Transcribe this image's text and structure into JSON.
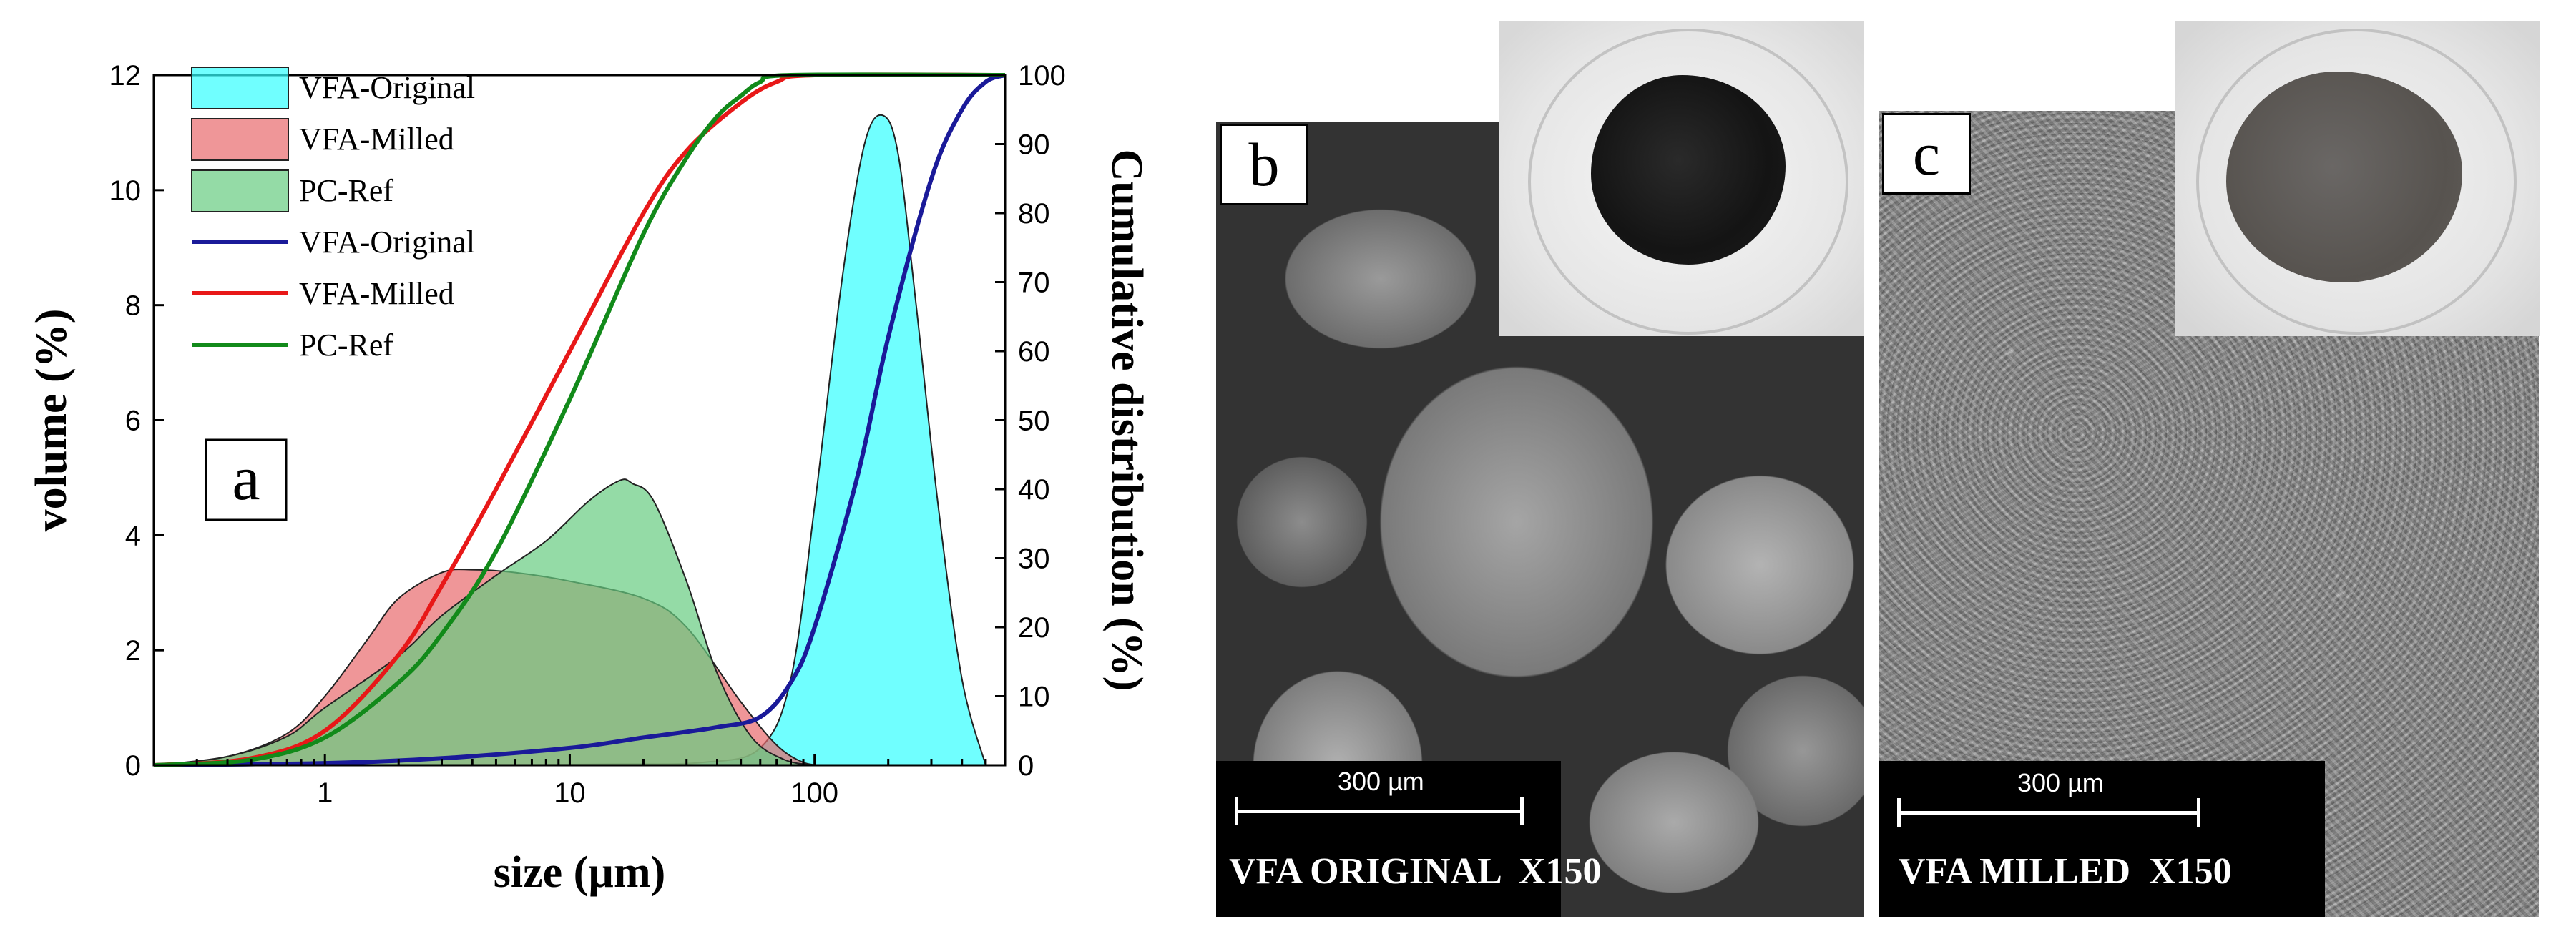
{
  "panels": {
    "b_label": "b",
    "c_label": "c",
    "b_scale": "300 µm",
    "c_scale": "300 µm",
    "b_caption": "VFA ORIGINAL  X150",
    "c_caption": "VFA MILLED  X150"
  },
  "chart_data": {
    "type": "area",
    "panel_label": "a",
    "xlabel": "size (µm)",
    "ylabel": "volume (%)",
    "y2label": "Cumulative distribution (%)",
    "xscale": "log",
    "xlim": [
      0.2,
      600
    ],
    "ylim": [
      0,
      12
    ],
    "y2lim": [
      0,
      100
    ],
    "xticks": [
      1,
      10,
      100
    ],
    "xtick_labels": [
      "1",
      "10",
      "100"
    ],
    "yticks": [
      0,
      2,
      4,
      6,
      8,
      10,
      12
    ],
    "ytick_labels": [
      "0",
      "2",
      "4",
      "6",
      "8",
      "10",
      "12"
    ],
    "y2ticks": [
      0,
      10,
      20,
      30,
      40,
      50,
      60,
      70,
      80,
      90,
      100
    ],
    "y2tick_labels": [
      "0",
      "10",
      "20",
      "30",
      "40",
      "50",
      "60",
      "70",
      "80",
      "90",
      "100"
    ],
    "legend_position": "top-left",
    "series": [
      {
        "name": "VFA-Original",
        "kind": "area",
        "axis": "left",
        "color": "#33ffff",
        "x": [
          0.2,
          1,
          5,
          15,
          35,
          60,
          80,
          100,
          130,
          160,
          190,
          220,
          260,
          320,
          400,
          500
        ],
        "y": [
          0,
          0,
          0,
          0.02,
          0.05,
          0.3,
          1.5,
          4.5,
          8.5,
          10.8,
          11.3,
          10.6,
          8.0,
          4.5,
          1.5,
          0
        ]
      },
      {
        "name": "VFA-Milled",
        "kind": "area",
        "axis": "left",
        "color": "#e8696c",
        "x": [
          0.2,
          0.4,
          0.7,
          1,
          1.5,
          2,
          3,
          4,
          6,
          10,
          20,
          30,
          50,
          70,
          90,
          110
        ],
        "y": [
          0,
          0.15,
          0.55,
          1.2,
          2.2,
          2.9,
          3.35,
          3.4,
          3.35,
          3.2,
          2.9,
          2.4,
          1.1,
          0.35,
          0.05,
          0
        ]
      },
      {
        "name": "PC-Ref",
        "kind": "area",
        "axis": "left",
        "color": "#66cc80",
        "x": [
          0.2,
          0.4,
          0.7,
          1,
          2,
          3,
          5,
          8,
          12,
          16,
          18,
          22,
          30,
          40,
          55,
          75,
          100
        ],
        "y": [
          0,
          0.15,
          0.5,
          1.0,
          1.9,
          2.6,
          3.3,
          3.9,
          4.6,
          4.95,
          4.9,
          4.6,
          3.2,
          1.6,
          0.5,
          0.1,
          0
        ]
      },
      {
        "name": "VFA-Original",
        "kind": "line",
        "axis": "right",
        "color": "#1a1a99",
        "x": [
          0.2,
          1,
          3,
          10,
          20,
          40,
          60,
          80,
          100,
          150,
          200,
          300,
          400,
          500,
          600
        ],
        "y": [
          0,
          0.3,
          1,
          2.5,
          4,
          5.5,
          7,
          12,
          20,
          42,
          62,
          85,
          95,
          99,
          100
        ]
      },
      {
        "name": "VFA-Milled",
        "kind": "line",
        "axis": "right",
        "color": "#e81818",
        "x": [
          0.2,
          0.5,
          1,
          2,
          3,
          5,
          10,
          20,
          30,
          50,
          70,
          100,
          600
        ],
        "y": [
          0,
          1,
          5,
          16,
          26,
          40,
          60,
          80,
          89,
          96,
          99,
          100,
          100
        ]
      },
      {
        "name": "PC-Ref",
        "kind": "line",
        "axis": "right",
        "color": "#128a1a",
        "x": [
          0.2,
          0.5,
          1,
          2,
          3,
          5,
          10,
          20,
          30,
          40,
          50,
          60,
          80,
          600
        ],
        "y": [
          0,
          0.8,
          4,
          12,
          19,
          31,
          53,
          77,
          88,
          94,
          97,
          99,
          100,
          100
        ]
      }
    ]
  }
}
